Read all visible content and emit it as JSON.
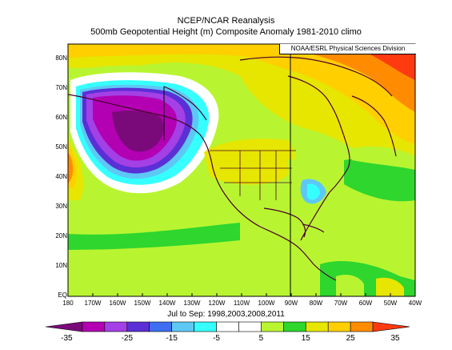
{
  "title_line1": "NCEP/NCAR Reanalysis",
  "title_line2": "500mb Geopotential Height (m) Composite Anomaly 1981-2010 climo",
  "credit": "NOAA/ESRL Physical Sciences Division",
  "date_line": "Jul to Sep: 1998,2003,2008,2011",
  "lat_labels": [
    "80N",
    "70N",
    "60N",
    "50N",
    "40N",
    "30N",
    "20N",
    "10N",
    "EQ"
  ],
  "lon_labels": [
    "180",
    "170W",
    "160W",
    "150W",
    "140W",
    "130W",
    "120W",
    "110W",
    "100W",
    "90W",
    "80W",
    "70W",
    "60W",
    "50W",
    "40W"
  ],
  "colorbar": {
    "tick_labels": [
      "-35",
      "-25",
      "-15",
      "-5",
      "5",
      "15",
      "25",
      "35"
    ],
    "colors": [
      "#7a0a7a",
      "#b200b2",
      "#a340e6",
      "#5b2fd6",
      "#3f6ef2",
      "#5ec8f5",
      "#36ffff",
      "#ffffff",
      "#ffffff",
      "#b8f530",
      "#2ed62e",
      "#e6e600",
      "#ffcf00",
      "#ff8c00",
      "#ff3a10"
    ]
  },
  "colors": {
    "frame": "#000000",
    "coast": "#4b0030",
    "background_field": "#b8f530"
  }
}
